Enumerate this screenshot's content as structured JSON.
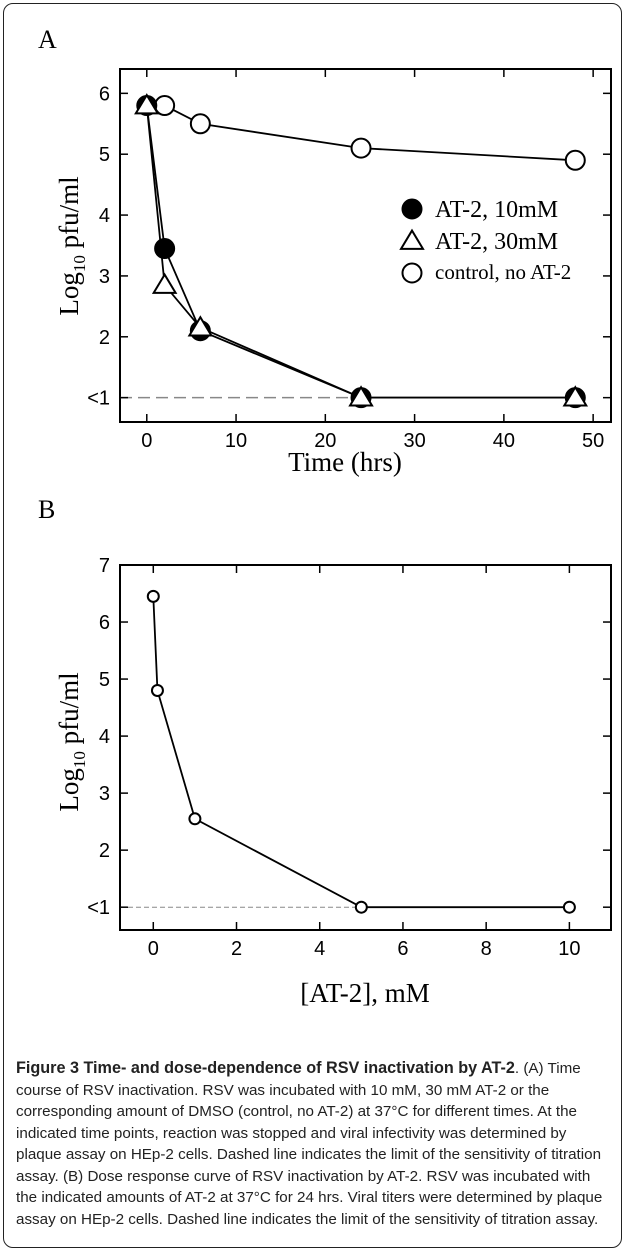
{
  "chart_data": [
    {
      "type": "line",
      "panel_label": "A",
      "xlabel": "Time (hrs)",
      "ylabel_main": "Log",
      "ylabel_sub": "10",
      "ylabel_rest": " pfu/ml",
      "xlim": [
        -3,
        52
      ],
      "ylim": [
        0.6,
        6.4
      ],
      "x_ticks": [
        0,
        10,
        20,
        30,
        40,
        50
      ],
      "y_ticks": [
        {
          "value": 1,
          "label": "<1"
        },
        {
          "value": 2,
          "label": "2"
        },
        {
          "value": 3,
          "label": "3"
        },
        {
          "value": 4,
          "label": "4"
        },
        {
          "value": 5,
          "label": "5"
        },
        {
          "value": 6,
          "label": "6"
        }
      ],
      "detection_limit": 1,
      "series": [
        {
          "name": "AT-2, 10mM",
          "marker": "filled-circle",
          "x": [
            0,
            2,
            6,
            24,
            48
          ],
          "y": [
            5.8,
            3.45,
            2.1,
            1.0,
            1.0
          ]
        },
        {
          "name": "AT-2, 30mM",
          "marker": "triangle",
          "x": [
            0,
            2,
            6,
            24,
            48
          ],
          "y": [
            5.8,
            2.85,
            2.15,
            1.0,
            1.0
          ]
        },
        {
          "name": "control, no AT-2",
          "marker": "open-circle",
          "x": [
            0,
            2,
            6,
            24,
            48
          ],
          "y": [
            5.8,
            5.8,
            5.5,
            5.1,
            4.9
          ]
        }
      ]
    },
    {
      "type": "line",
      "panel_label": "B",
      "xlabel": "[AT-2], mM",
      "ylabel_main": "Log",
      "ylabel_sub": "10",
      "ylabel_rest": " pfu/ml",
      "xlim": [
        -0.8,
        11
      ],
      "ylim": [
        0.6,
        7
      ],
      "x_ticks": [
        0,
        2,
        4,
        6,
        8,
        10
      ],
      "y_ticks": [
        {
          "value": 1,
          "label": "<1"
        },
        {
          "value": 2,
          "label": "2"
        },
        {
          "value": 3,
          "label": "3"
        },
        {
          "value": 4,
          "label": "4"
        },
        {
          "value": 5,
          "label": "5"
        },
        {
          "value": 6,
          "label": "6"
        },
        {
          "value": 7,
          "label": "7"
        }
      ],
      "detection_limit": 1,
      "series": [
        {
          "name": "",
          "marker": "open-circle",
          "x": [
            0,
            0.1,
            1,
            5,
            10
          ],
          "y": [
            6.45,
            4.8,
            2.55,
            1.0,
            1.0
          ]
        }
      ]
    }
  ],
  "caption": {
    "title": "Figure 3 Time- and dose-dependence of RSV inactivation by AT-2",
    "text": ". (A) Time course of RSV inactivation. RSV was incubated with 10 mM, 30 mM AT-2 or the corresponding amount of DMSO (control, no AT-2) at 37°C for different times. At the indicated time points, reaction was stopped and viral infectivity was determined by plaque assay on HEp-2 cells. Dashed line indicates the limit of the sensitivity of titration assay. (B) Dose response curve of RSV inactivation by AT-2. RSV was incubated with the indicated amounts of AT-2 at 37°C for 24 hrs. Viral titers were determined by plaque assay on HEp-2 cells. Dashed line indicates the limit of the sensitivity of titration assay."
  }
}
